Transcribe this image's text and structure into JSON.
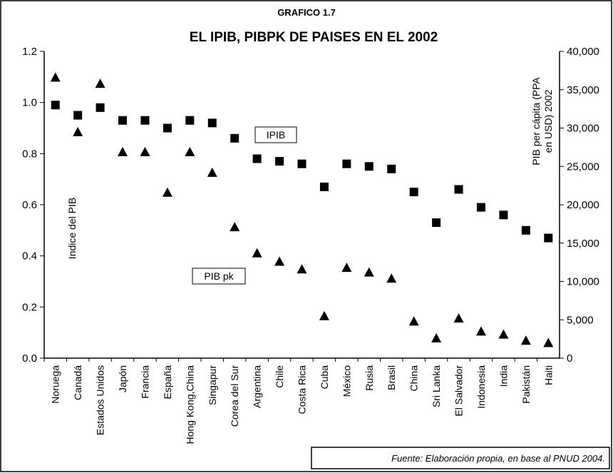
{
  "chart_data": {
    "type": "scatter",
    "subtitle": "GRAFICO 1.7",
    "title": "EL IPIB, PIBPK DE PAISES EN EL 2002",
    "ylabel": "Indice del PIB",
    "y2label": [
      "PIB per cápita (PPA",
      "en USD) 2002"
    ],
    "source": "Fuente: Elaboración propia, en base al PNUD 2004.",
    "categories": [
      "Noruega",
      "Canadá",
      "Estados Unidos",
      "Japón",
      "Francia",
      "España",
      "Hong Kong,China",
      "Singapur",
      "Corea del Sur",
      "Argentina",
      "Chile",
      "Costa Rica",
      "Cuba",
      "México",
      "Rusia",
      "Brasil",
      "China",
      "Sri Lanka",
      "El Salvador",
      "Indonesia",
      "India",
      "Pakistán",
      "Haiti"
    ],
    "series": [
      {
        "name": "IPIB",
        "color": "#000000",
        "marker": "square",
        "values": [
          0.99,
          0.95,
          0.98,
          0.93,
          0.93,
          0.9,
          0.93,
          0.92,
          0.86,
          0.78,
          0.77,
          0.76,
          0.67,
          0.76,
          0.75,
          0.74,
          0.65,
          0.53,
          0.66,
          0.59,
          0.56,
          0.5,
          0.47
        ]
      },
      {
        "name": "PIB pk",
        "color": "#000000",
        "marker": "triangle",
        "axis": "y2",
        "values": [
          36600,
          29500,
          35800,
          26900,
          26900,
          21600,
          26900,
          24200,
          17100,
          13700,
          12600,
          11600,
          5500,
          11800,
          11200,
          10400,
          4800,
          2600,
          5200,
          3500,
          3100,
          2300,
          2000
        ]
      }
    ],
    "ylim": [
      0,
      1.2
    ],
    "yticks": [
      {
        "value": 0,
        "label": "0.0"
      },
      0.2,
      0.4,
      0.6,
      0.8,
      {
        "value": 1,
        "label": "1.0"
      },
      1.2
    ],
    "y2lim": [
      0,
      40000
    ],
    "y2ticks": [
      {
        "value": 0,
        "label": "0"
      },
      {
        "value": 5000,
        "label": "5,000"
      },
      {
        "value": 10000,
        "label": "10,000"
      },
      {
        "value": 15000,
        "label": "15,000"
      },
      {
        "value": 20000,
        "label": "20,000"
      },
      {
        "value": 25000,
        "label": "25,000"
      },
      {
        "value": 30000,
        "label": "30,000"
      },
      {
        "value": 35000,
        "label": "35,000"
      },
      {
        "value": 40000,
        "label": "40,000"
      }
    ]
  }
}
